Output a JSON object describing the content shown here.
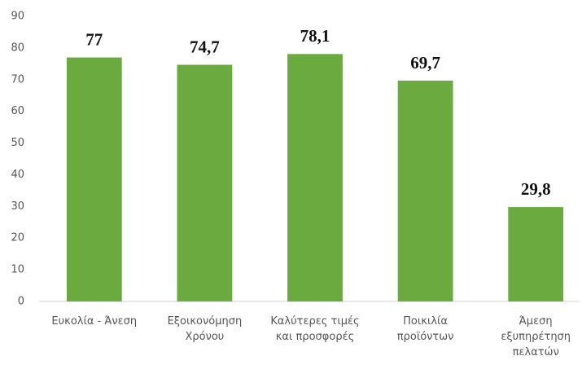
{
  "chart_data": {
    "type": "bar",
    "categories": [
      "Ευκολία - Άνεση",
      "Εξοικονόμηση Χρόνου",
      "Καλύτερες τιμές και προσφορές",
      "Ποικιλία προϊόντων",
      "Άμεση εξυπηρέτηση πελατών"
    ],
    "values": [
      77,
      74.7,
      78.1,
      69.7,
      29.8
    ],
    "value_labels": [
      "77",
      "74,7",
      "78,1",
      "69,7",
      "29,8"
    ],
    "color": "#6aaa3f",
    "ylim": [
      0,
      90
    ],
    "yticks": [
      0,
      10,
      20,
      30,
      40,
      50,
      60,
      70,
      80,
      90
    ],
    "grid": false
  }
}
